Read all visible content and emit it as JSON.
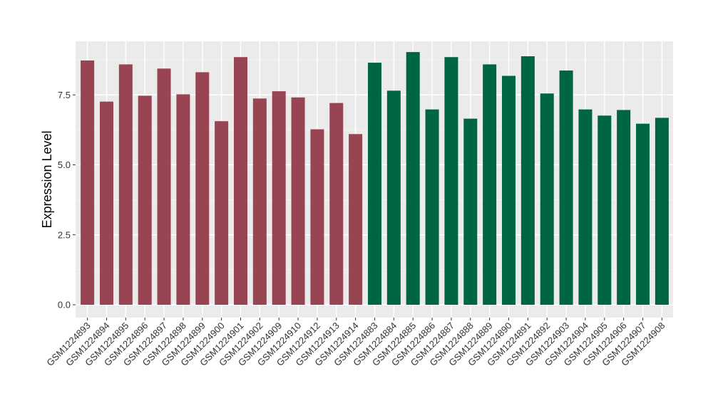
{
  "chart_data": {
    "type": "bar",
    "ylabel": "Expression Level",
    "ylim": [
      0,
      9
    ],
    "yticks": [
      0.0,
      2.5,
      5.0,
      7.5
    ],
    "ytick_labels": [
      "0.0",
      "2.5",
      "5.0",
      "7.5"
    ],
    "grid": true,
    "categories": [
      "GSM1224893",
      "GSM1224894",
      "GSM1224895",
      "GSM1224896",
      "GSM1224897",
      "GSM1224898",
      "GSM1224899",
      "GSM1224900",
      "GSM1224901",
      "GSM1224902",
      "GSM1224909",
      "GSM1224910",
      "GSM1224912",
      "GSM1224913",
      "GSM1224914",
      "GSM1224883",
      "GSM1224884",
      "GSM1224885",
      "GSM1224886",
      "GSM1224887",
      "GSM1224888",
      "GSM1224889",
      "GSM1224890",
      "GSM1224891",
      "GSM1224892",
      "GSM1224903",
      "GSM1224904",
      "GSM1224905",
      "GSM1224906",
      "GSM1224907",
      "GSM1224908"
    ],
    "values": [
      8.73,
      7.26,
      8.59,
      7.47,
      8.44,
      7.52,
      8.31,
      6.56,
      8.85,
      7.37,
      7.63,
      7.41,
      6.27,
      7.21,
      6.1,
      8.65,
      7.65,
      9.03,
      6.98,
      8.85,
      6.65,
      8.59,
      8.18,
      8.88,
      7.55,
      8.37,
      6.98,
      6.76,
      6.96,
      6.47,
      6.68
    ],
    "group_index": [
      0,
      0,
      0,
      0,
      0,
      0,
      0,
      0,
      0,
      0,
      0,
      0,
      0,
      0,
      0,
      1,
      1,
      1,
      1,
      1,
      1,
      1,
      1,
      1,
      1,
      1,
      1,
      1,
      1,
      1,
      1
    ],
    "group_colors": [
      "#984452",
      "#006544"
    ]
  },
  "style": {
    "panel_background": "#ebebeb",
    "grid_major": "#ffffff",
    "grid_minor": "#f5f5f5",
    "tick_color": "#333333"
  }
}
